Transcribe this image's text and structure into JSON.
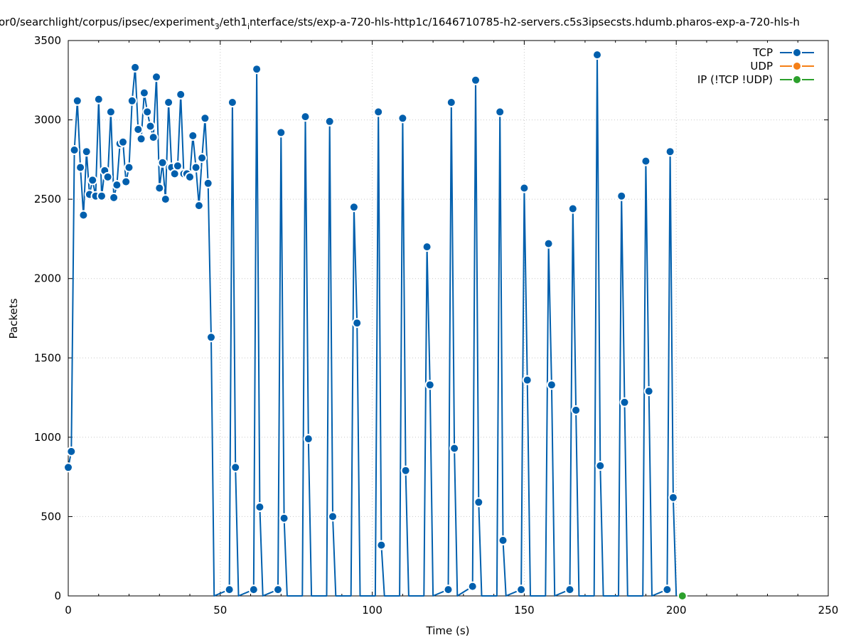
{
  "chart_data": {
    "type": "line",
    "title": "or0/searchlight/corpus/ipsec/experiment_3/eth1_interface/sts/exp-a-720-hls-http1c/1646710785-h2-servers.c5s3ipsecsts.hdumb.pharos-exp-a-720-hls-h",
    "title_parts": {
      "p1": "or0/searchlight/corpus/ipsec/experiment",
      "sub1": "3",
      "p2": "/eth1",
      "sub2": "i",
      "p3": "nterface/sts/exp-a-720-hls-http1c/1646710785-h2-servers.c5s3ipsecsts.hdumb.pharos-exp-a-720-hls-h"
    },
    "xlabel": "Time (s)",
    "ylabel": "Packets",
    "xlim": [
      0,
      250
    ],
    "ylim": [
      0,
      3500
    ],
    "xticks": [
      0,
      50,
      100,
      150,
      200,
      250
    ],
    "yticks": [
      0,
      500,
      1000,
      1500,
      2000,
      2500,
      3000,
      3500
    ],
    "grid": true,
    "legend_position": "top-right",
    "colors": {
      "TCP": "#005fad",
      "UDP": "#f57f17",
      "IP": "#2ca02c"
    },
    "series": [
      {
        "name": "TCP",
        "x": [
          0,
          1,
          2,
          3,
          4,
          5,
          6,
          7,
          8,
          9,
          10,
          11,
          12,
          13,
          14,
          15,
          16,
          17,
          18,
          19,
          20,
          21,
          22,
          23,
          24,
          25,
          26,
          27,
          28,
          29,
          30,
          31,
          32,
          33,
          34,
          35,
          36,
          37,
          38,
          39,
          40,
          41,
          42,
          43,
          44,
          45,
          46,
          47,
          48,
          53,
          54,
          55,
          56,
          61,
          62,
          63,
          64,
          69,
          70,
          71,
          72,
          77,
          78,
          79,
          80,
          85,
          86,
          87,
          88,
          93,
          94,
          95,
          96,
          101,
          102,
          103,
          104,
          109,
          110,
          111,
          112,
          117,
          118,
          119,
          120,
          125,
          126,
          127,
          128,
          133,
          134,
          135,
          136,
          141,
          142,
          143,
          144,
          149,
          150,
          151,
          152,
          157,
          158,
          159,
          160,
          165,
          166,
          167,
          168,
          173,
          174,
          175,
          176,
          181,
          182,
          183,
          184,
          189,
          190,
          191,
          192,
          197,
          198,
          199,
          200
        ],
        "y": [
          810,
          910,
          2810,
          3120,
          2700,
          2400,
          2800,
          2530,
          2620,
          2520,
          3130,
          2520,
          2680,
          2640,
          3050,
          2510,
          2590,
          2850,
          2860,
          2610,
          2700,
          3120,
          3330,
          2940,
          2880,
          3170,
          3050,
          2960,
          2890,
          3270,
          2570,
          2730,
          2500,
          3110,
          2700,
          2660,
          2710,
          3160,
          2660,
          2660,
          2640,
          2900,
          2700,
          2460,
          2760,
          3010,
          2600,
          1630,
          0,
          40,
          3110,
          810,
          0,
          40,
          3320,
          560,
          0,
          40,
          2920,
          490,
          0,
          0,
          3020,
          990,
          0,
          0,
          2990,
          500,
          0,
          0,
          2450,
          1720,
          0,
          0,
          3050,
          320,
          0,
          0,
          3010,
          790,
          0,
          0,
          2200,
          1330,
          0,
          40,
          3110,
          930,
          0,
          60,
          3250,
          590,
          0,
          0,
          3050,
          350,
          0,
          40,
          2570,
          1360,
          0,
          0,
          2220,
          1330,
          0,
          40,
          2440,
          1170,
          0,
          0,
          3410,
          820,
          0,
          0,
          2520,
          1220,
          0,
          0,
          2740,
          1290,
          0,
          40,
          2800,
          620,
          0
        ]
      },
      {
        "name": "UDP",
        "x": [],
        "y": []
      },
      {
        "name": "IP (!TCP  !UDP)",
        "x": [
          202
        ],
        "y": [
          0
        ]
      }
    ]
  }
}
